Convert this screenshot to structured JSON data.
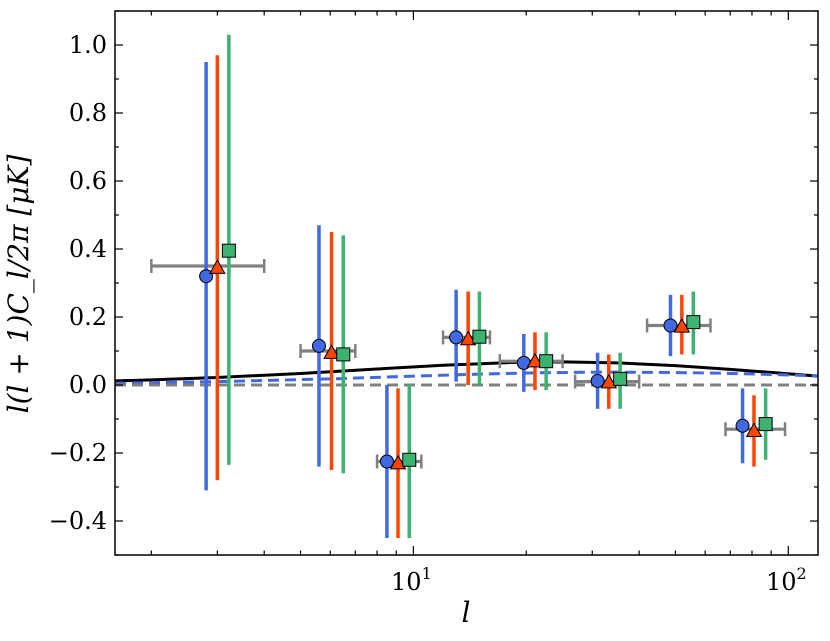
{
  "chart_data": {
    "type": "scatter",
    "title": "",
    "xlabel": "l",
    "ylabel": "l(l + 1)C_l/2π [μK]",
    "x_scale": "log",
    "xlim": [
      1.6,
      120
    ],
    "ylim": [
      -0.5,
      1.1
    ],
    "y_ticks": [
      {
        "value": 1.0,
        "label": "1.0"
      },
      {
        "value": 0.8,
        "label": "0.8"
      },
      {
        "value": 0.6,
        "label": "0.6"
      },
      {
        "value": 0.4,
        "label": "0.4"
      },
      {
        "value": 0.2,
        "label": "0.2"
      },
      {
        "value": 0.0,
        "label": "0.0"
      },
      {
        "value": -0.2,
        "label": "−0.2"
      },
      {
        "value": -0.4,
        "label": "−0.4"
      }
    ],
    "x_ticks": [
      {
        "value": 10,
        "base": "10",
        "exp": "1"
      },
      {
        "value": 100,
        "base": "10",
        "exp": "2"
      }
    ],
    "grid": false,
    "colors": {
      "blue": "#4169e1",
      "orange": "#ff4500",
      "green": "#3cb371",
      "gray": "#808080",
      "black": "#000000"
    },
    "bins": [
      {
        "x_low": 2,
        "x_high": 4,
        "center": 3,
        "y": 0.35
      },
      {
        "x_low": 5,
        "x_high": 7,
        "center": 6,
        "y": 0.1
      },
      {
        "x_low": 8,
        "x_high": 10.5,
        "center": 9.2,
        "y": -0.225
      },
      {
        "x_low": 12,
        "x_high": 16,
        "center": 14,
        "y": 0.14
      },
      {
        "x_low": 17,
        "x_high": 25,
        "center": 21,
        "y": 0.07
      },
      {
        "x_low": 27,
        "x_high": 40,
        "center": 33,
        "y": 0.01
      },
      {
        "x_low": 42,
        "x_high": 62,
        "center": 52,
        "y": 0.175
      },
      {
        "x_low": 68,
        "x_high": 98,
        "center": 82,
        "y": -0.13
      }
    ],
    "series": [
      {
        "marker": "circle",
        "color": "#4169e1",
        "points": [
          {
            "x": 2.8,
            "y": 0.32,
            "ylo": -0.31,
            "yhi": 0.95
          },
          {
            "x": 5.6,
            "y": 0.115,
            "ylo": -0.24,
            "yhi": 0.47
          },
          {
            "x": 8.5,
            "y": -0.225,
            "ylo": -0.45,
            "yhi": 0.0
          },
          {
            "x": 13.0,
            "y": 0.14,
            "ylo": 0.01,
            "yhi": 0.28
          },
          {
            "x": 19.7,
            "y": 0.065,
            "ylo": -0.02,
            "yhi": 0.15
          },
          {
            "x": 31.0,
            "y": 0.012,
            "ylo": -0.07,
            "yhi": 0.095
          },
          {
            "x": 48.5,
            "y": 0.175,
            "ylo": 0.085,
            "yhi": 0.265
          },
          {
            "x": 75.5,
            "y": -0.12,
            "ylo": -0.23,
            "yhi": -0.01
          }
        ]
      },
      {
        "marker": "triangle",
        "color": "#ff4500",
        "points": [
          {
            "x": 3.0,
            "y": 0.345,
            "ylo": -0.28,
            "yhi": 0.97
          },
          {
            "x": 6.05,
            "y": 0.095,
            "ylo": -0.25,
            "yhi": 0.45
          },
          {
            "x": 9.1,
            "y": -0.23,
            "ylo": -0.45,
            "yhi": -0.01
          },
          {
            "x": 14.0,
            "y": 0.135,
            "ylo": 0.0,
            "yhi": 0.275
          },
          {
            "x": 21.1,
            "y": 0.07,
            "ylo": -0.015,
            "yhi": 0.155
          },
          {
            "x": 33.2,
            "y": 0.008,
            "ylo": -0.07,
            "yhi": 0.09
          },
          {
            "x": 52.0,
            "y": 0.172,
            "ylo": 0.09,
            "yhi": 0.265
          },
          {
            "x": 81.0,
            "y": -0.135,
            "ylo": -0.24,
            "yhi": -0.03
          }
        ]
      },
      {
        "marker": "square",
        "color": "#3cb371",
        "points": [
          {
            "x": 3.22,
            "y": 0.395,
            "ylo": -0.235,
            "yhi": 1.03
          },
          {
            "x": 6.5,
            "y": 0.09,
            "ylo": -0.26,
            "yhi": 0.44
          },
          {
            "x": 9.75,
            "y": -0.22,
            "ylo": -0.45,
            "yhi": 0.0
          },
          {
            "x": 15.0,
            "y": 0.142,
            "ylo": 0.0,
            "yhi": 0.275
          },
          {
            "x": 22.6,
            "y": 0.07,
            "ylo": -0.015,
            "yhi": 0.155
          },
          {
            "x": 35.6,
            "y": 0.018,
            "ylo": -0.07,
            "yhi": 0.095
          },
          {
            "x": 55.8,
            "y": 0.185,
            "ylo": 0.09,
            "yhi": 0.275
          },
          {
            "x": 87.0,
            "y": -0.115,
            "ylo": -0.22,
            "yhi": -0.01
          }
        ]
      }
    ],
    "curves": [
      {
        "style": "solid",
        "color": "#000000",
        "points": [
          {
            "x": 1.6,
            "y": 0.012
          },
          {
            "x": 2,
            "y": 0.015
          },
          {
            "x": 3,
            "y": 0.022
          },
          {
            "x": 5,
            "y": 0.034
          },
          {
            "x": 8,
            "y": 0.047
          },
          {
            "x": 12,
            "y": 0.058
          },
          {
            "x": 18,
            "y": 0.066
          },
          {
            "x": 25,
            "y": 0.068
          },
          {
            "x": 35,
            "y": 0.065
          },
          {
            "x": 50,
            "y": 0.057
          },
          {
            "x": 70,
            "y": 0.046
          },
          {
            "x": 95,
            "y": 0.035
          },
          {
            "x": 120,
            "y": 0.026
          }
        ]
      },
      {
        "style": "dashed",
        "color": "#4169e1",
        "points": [
          {
            "x": 1.6,
            "y": 0.005
          },
          {
            "x": 3,
            "y": 0.01
          },
          {
            "x": 6,
            "y": 0.018
          },
          {
            "x": 10,
            "y": 0.026
          },
          {
            "x": 15,
            "y": 0.032
          },
          {
            "x": 22,
            "y": 0.036
          },
          {
            "x": 32,
            "y": 0.038
          },
          {
            "x": 45,
            "y": 0.037
          },
          {
            "x": 65,
            "y": 0.035
          },
          {
            "x": 90,
            "y": 0.031
          },
          {
            "x": 120,
            "y": 0.027
          }
        ]
      },
      {
        "style": "dashed",
        "color": "#808080",
        "points": [
          {
            "x": 1.6,
            "y": 0.0
          },
          {
            "x": 120,
            "y": 0.0
          }
        ]
      }
    ]
  }
}
